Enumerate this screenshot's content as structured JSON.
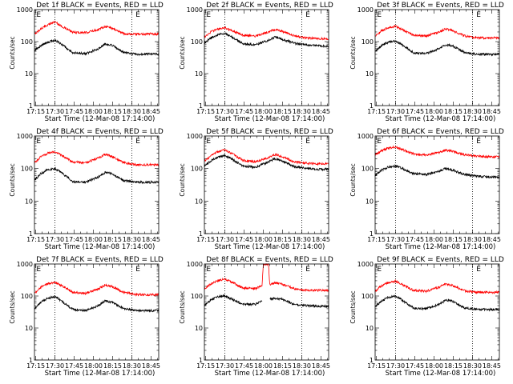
{
  "figure": {
    "shared": {
      "xlabel": "Start Time (12-Mar-08 17:14:00)",
      "ylabel": "Counts/sec",
      "x_ticks": [
        "17:15",
        "17:30",
        "17:45",
        "18:00",
        "18:15",
        "18:30",
        "18:45"
      ],
      "y_ticks": [
        "1",
        "10",
        "100",
        "1000"
      ],
      "marker_label": "E",
      "vertical_marker_times": [
        "17:30",
        "18:30"
      ]
    }
  },
  "chart_data": [
    {
      "type": "line",
      "title": "Det 1f BLACK = Events, RED = LLD",
      "xlabel": "Start Time (12-Mar-08 17:14:00)",
      "ylabel": "Counts/sec",
      "x_unit": "minutes after 17:14:00",
      "xlim": [
        0,
        97
      ],
      "ylim": [
        1,
        1000
      ],
      "yscale": "log",
      "x": [
        0,
        5,
        10,
        16,
        20,
        30,
        40,
        50,
        55,
        60,
        70,
        80,
        90,
        97
      ],
      "series": [
        {
          "color": "#ff0000",
          "values": [
            170,
            250,
            330,
            420,
            320,
            195,
            190,
            240,
            300,
            270,
            175,
            170,
            175,
            170
          ]
        },
        {
          "color": "#000000",
          "values": [
            52,
            75,
            95,
            110,
            90,
            45,
            42,
            60,
            85,
            80,
            45,
            40,
            42,
            40
          ]
        }
      ]
    },
    {
      "type": "line",
      "title": "Det 2f BLACK = Events, RED = LLD",
      "xlabel": "Start Time (12-Mar-08 17:14:00)",
      "ylabel": "Counts/sec",
      "x_unit": "minutes after 17:14:00",
      "xlim": [
        0,
        97
      ],
      "ylim": [
        1,
        1000
      ],
      "yscale": "log",
      "x": [
        0,
        5,
        10,
        16,
        20,
        30,
        40,
        50,
        55,
        60,
        70,
        80,
        90,
        97
      ],
      "series": [
        {
          "color": "#ff0000",
          "values": [
            140,
            200,
            240,
            270,
            230,
            160,
            150,
            200,
            240,
            215,
            150,
            130,
            125,
            120
          ]
        },
        {
          "color": "#000000",
          "values": [
            90,
            130,
            160,
            180,
            150,
            85,
            80,
            110,
            140,
            120,
            90,
            80,
            75,
            70
          ]
        }
      ]
    },
    {
      "type": "line",
      "title": "Det 3f BLACK = Events, RED = LLD",
      "xlabel": "Start Time (12-Mar-08 17:14:00)",
      "ylabel": "Counts/sec",
      "x_unit": "minutes after 17:14:00",
      "xlim": [
        0,
        97
      ],
      "ylim": [
        1,
        1000
      ],
      "yscale": "log",
      "x": [
        0,
        5,
        10,
        16,
        20,
        30,
        40,
        50,
        55,
        60,
        70,
        80,
        90,
        97
      ],
      "series": [
        {
          "color": "#ff0000",
          "values": [
            150,
            220,
            270,
            300,
            250,
            160,
            150,
            200,
            250,
            220,
            150,
            130,
            130,
            130
          ]
        },
        {
          "color": "#000000",
          "values": [
            50,
            75,
            95,
            105,
            85,
            45,
            42,
            60,
            80,
            75,
            45,
            40,
            40,
            40
          ]
        }
      ]
    },
    {
      "type": "line",
      "title": "Det 4f BLACK = Events, RED = LLD",
      "xlabel": "Start Time (12-Mar-08 17:14:00)",
      "ylabel": "Counts/sec",
      "x_unit": "minutes after 17:14:00",
      "xlim": [
        0,
        97
      ],
      "ylim": [
        1,
        1000
      ],
      "yscale": "log",
      "x": [
        0,
        5,
        10,
        16,
        20,
        30,
        40,
        50,
        55,
        60,
        70,
        80,
        90,
        97
      ],
      "series": [
        {
          "color": "#ff0000",
          "values": [
            150,
            230,
            290,
            330,
            270,
            160,
            150,
            210,
            270,
            240,
            150,
            130,
            130,
            130
          ]
        },
        {
          "color": "#000000",
          "values": [
            45,
            70,
            90,
            100,
            80,
            40,
            38,
            55,
            75,
            70,
            42,
            38,
            38,
            38
          ]
        }
      ]
    },
    {
      "type": "line",
      "title": "Det 5f BLACK = Events, RED = LLD",
      "xlabel": "Start Time (12-Mar-08 17:14:00)",
      "ylabel": "Counts/sec",
      "x_unit": "minutes after 17:14:00",
      "xlim": [
        0,
        97
      ],
      "ylim": [
        1,
        1000
      ],
      "yscale": "log",
      "x": [
        0,
        5,
        10,
        16,
        20,
        30,
        40,
        50,
        55,
        60,
        70,
        80,
        90,
        97
      ],
      "series": [
        {
          "color": "#ff0000",
          "values": [
            170,
            250,
            320,
            370,
            310,
            180,
            160,
            220,
            270,
            240,
            160,
            145,
            140,
            140
          ]
        },
        {
          "color": "#000000",
          "values": [
            120,
            170,
            220,
            250,
            210,
            120,
            110,
            160,
            200,
            180,
            115,
            100,
            95,
            95
          ]
        }
      ]
    },
    {
      "type": "line",
      "title": "Det 6f BLACK = Events, RED = LLD",
      "xlabel": "Start Time (12-Mar-08 17:14:00)",
      "ylabel": "Counts/sec",
      "x_unit": "minutes after 17:14:00",
      "xlim": [
        0,
        97
      ],
      "ylim": [
        1,
        1000
      ],
      "yscale": "log",
      "x": [
        0,
        5,
        10,
        16,
        20,
        30,
        40,
        50,
        55,
        60,
        70,
        80,
        90,
        97
      ],
      "series": [
        {
          "color": "#ff0000",
          "values": [
            270,
            350,
            420,
            460,
            400,
            280,
            260,
            310,
            360,
            340,
            260,
            240,
            230,
            230
          ]
        },
        {
          "color": "#000000",
          "values": [
            60,
            90,
            110,
            120,
            105,
            70,
            65,
            85,
            100,
            90,
            65,
            58,
            55,
            55
          ]
        }
      ]
    },
    {
      "type": "line",
      "title": "Det 7f BLACK = Events, RED = LLD",
      "xlabel": "Start Time (12-Mar-08 17:14:00)",
      "ylabel": "Counts/sec",
      "x_unit": "minutes after 17:14:00",
      "xlim": [
        0,
        97
      ],
      "ylim": [
        1,
        1000
      ],
      "yscale": "log",
      "x": [
        0,
        5,
        10,
        16,
        20,
        30,
        40,
        50,
        55,
        60,
        70,
        80,
        90,
        97
      ],
      "series": [
        {
          "color": "#ff0000",
          "values": [
            120,
            190,
            240,
            270,
            220,
            130,
            120,
            170,
            220,
            200,
            130,
            110,
            110,
            110
          ]
        },
        {
          "color": "#000000",
          "values": [
            40,
            65,
            85,
            95,
            75,
            38,
            35,
            50,
            70,
            65,
            40,
            35,
            35,
            35
          ]
        }
      ]
    },
    {
      "type": "line",
      "title": "Det 8f BLACK = Events, RED = LLD",
      "xlabel": "Start Time (12-Mar-08 17:14:00)",
      "ylabel": "Counts/sec",
      "x_unit": "minutes after 17:14:00",
      "xlim": [
        0,
        97
      ],
      "ylim": [
        1,
        1000
      ],
      "yscale": "log",
      "x": [
        0,
        5,
        10,
        16,
        20,
        30,
        40,
        45,
        46,
        50,
        51,
        55,
        60,
        70,
        80,
        90,
        97
      ],
      "series": [
        {
          "color": "#ff0000",
          "values": [
            170,
            240,
            300,
            340,
            290,
            180,
            170,
            220,
            1000,
            1000,
            230,
            260,
            240,
            170,
            150,
            150,
            150
          ]
        },
        {
          "color": "#000000",
          "values": [
            50,
            75,
            95,
            100,
            85,
            55,
            55,
            70,
            null,
            null,
            80,
            85,
            80,
            55,
            50,
            48,
            48
          ]
        }
      ]
    },
    {
      "type": "line",
      "title": "Det 9f BLACK = Events, RED = LLD",
      "xlabel": "Start Time (12-Mar-08 17:14:00)",
      "ylabel": "Counts/sec",
      "x_unit": "minutes after 17:14:00",
      "xlim": [
        0,
        97
      ],
      "ylim": [
        1,
        1000
      ],
      "yscale": "log",
      "x": [
        0,
        5,
        10,
        16,
        20,
        30,
        40,
        50,
        55,
        60,
        70,
        80,
        90,
        97
      ],
      "series": [
        {
          "color": "#ff0000",
          "values": [
            140,
            210,
            260,
            290,
            240,
            150,
            140,
            190,
            240,
            215,
            145,
            130,
            130,
            130
          ]
        },
        {
          "color": "#000000",
          "values": [
            45,
            70,
            90,
            100,
            80,
            42,
            40,
            55,
            75,
            70,
            42,
            38,
            38,
            38
          ]
        }
      ]
    }
  ]
}
